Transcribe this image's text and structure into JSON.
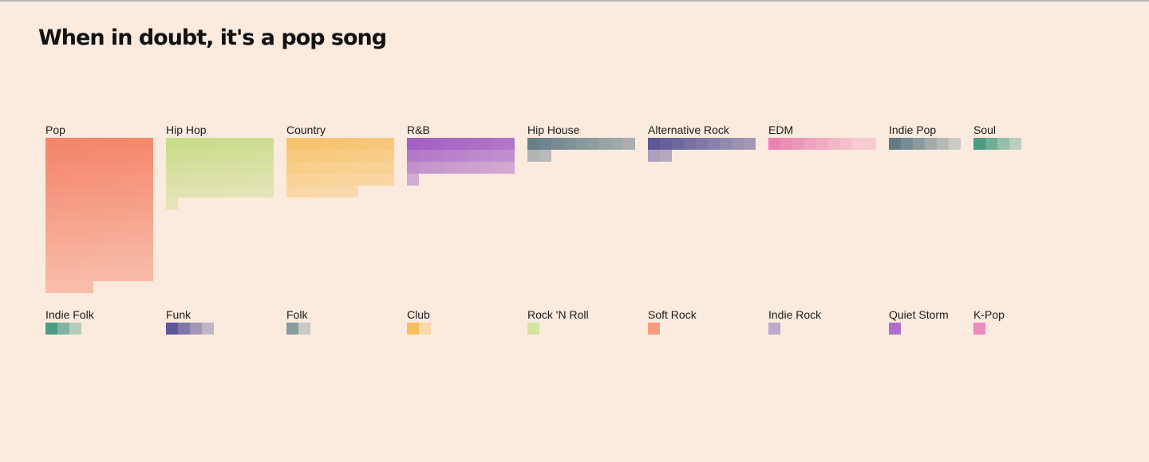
{
  "page": {
    "title": "When in doubt, it's a pop song"
  },
  "chart_data": {
    "type": "waffle",
    "title": "When in doubt, it's a pop song",
    "unit": "square",
    "squares_per_row": 9,
    "genres": [
      {
        "name": "Pop",
        "count": 112,
        "color": "#f4856a"
      },
      {
        "name": "Hip Hop",
        "count": 46,
        "color": "#c9dc8a"
      },
      {
        "name": "Country",
        "count": 42,
        "color": "#f7c46e"
      },
      {
        "name": "R&B",
        "count": 28,
        "color": "#a35fc4"
      },
      {
        "name": "Hip House",
        "count": 11,
        "color": "#667f89"
      },
      {
        "name": "Alternative Rock",
        "count": 11,
        "color": "#5d5898"
      },
      {
        "name": "EDM",
        "count": 9,
        "color": "#ec82b3"
      },
      {
        "name": "Indie Pop",
        "count": 6,
        "color": "#627b87"
      },
      {
        "name": "Soul",
        "count": 4,
        "color": "#4b9c85"
      },
      {
        "name": "Indie Folk",
        "count": 3,
        "color": "#4b9c85"
      },
      {
        "name": "Funk",
        "count": 4,
        "color": "#5d5898"
      },
      {
        "name": "Folk",
        "count": 2,
        "color": "#889ba1"
      },
      {
        "name": "Club",
        "count": 2,
        "color": "#f7be5f"
      },
      {
        "name": "Rock 'N Roll",
        "count": 1,
        "color": "#d4e2a2"
      },
      {
        "name": "Soft Rock",
        "count": 1,
        "color": "#f59b80"
      },
      {
        "name": "Indie Rock",
        "count": 1,
        "color": "#bbaac8"
      },
      {
        "name": "Quiet Storm",
        "count": 1,
        "color": "#b06dc9"
      },
      {
        "name": "K-Pop",
        "count": 1,
        "color": "#ee8cbc"
      }
    ]
  }
}
